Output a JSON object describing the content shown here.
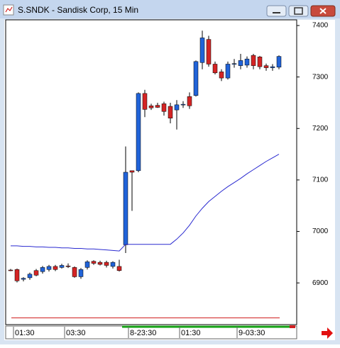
{
  "window_title": "S.SNDK - Sandisk Corp, 15 Min",
  "chart_data": {
    "type": "candlestick",
    "categories": [
      "01:30",
      null,
      null,
      null,
      null,
      null,
      null,
      null,
      "03:30",
      null,
      null,
      null,
      null,
      null,
      null,
      null,
      null,
      null,
      "8-23:30",
      null,
      null,
      null,
      null,
      null,
      null,
      null,
      "01:30",
      null,
      null,
      null,
      null,
      null,
      null,
      null,
      null,
      "9-03:30",
      null,
      null,
      null,
      null,
      null,
      null,
      null
    ],
    "open": [
      6925,
      6926,
      6907,
      6910,
      6924,
      6922,
      6926,
      6932,
      6930,
      6933,
      6930,
      6912,
      6930,
      6942,
      6940,
      6940,
      6932,
      6932,
      6974,
      7118,
      7118,
      7268,
      7244,
      7245,
      7248,
      7243,
      7236,
      7246,
      7262,
      7264,
      7328,
      7373,
      7325,
      7310,
      7298,
      7325,
      7322,
      7323,
      7342,
      7339,
      7322,
      7318,
      7319
    ],
    "high": [
      6927,
      6928,
      6911,
      6920,
      6927,
      6933,
      6935,
      6935,
      6937,
      6938,
      6932,
      6929,
      6944,
      6944,
      6943,
      6943,
      6942,
      6945,
      7165,
      7118,
      7270,
      7275,
      7248,
      7250,
      7252,
      7250,
      7255,
      7253,
      7270,
      7332,
      7390,
      7380,
      7330,
      7315,
      7330,
      7335,
      7345,
      7340,
      7345,
      7341,
      7326,
      7325,
      7342
    ],
    "low": [
      6923,
      6901,
      6903,
      6906,
      6913,
      6918,
      6922,
      6923,
      6928,
      6929,
      6910,
      6908,
      6926,
      6935,
      6934,
      6930,
      6928,
      6922,
      6958,
      7040,
      7115,
      7222,
      7236,
      7240,
      7225,
      7210,
      7198,
      7240,
      7238,
      7262,
      7315,
      7320,
      7305,
      7292,
      7295,
      7318,
      7315,
      7318,
      7315,
      7315,
      7312,
      7312,
      7315
    ],
    "close": [
      6924,
      6904,
      6909,
      6917,
      6915,
      6930,
      6932,
      6926,
      6934,
      6932,
      6912,
      6926,
      6941,
      6938,
      6936,
      6934,
      6940,
      6924,
      7115,
      7115,
      7268,
      7237,
      7240,
      7241,
      7233,
      7220,
      7246,
      7247,
      7244,
      7330,
      7376,
      7325,
      7308,
      7298,
      7325,
      7326,
      7332,
      7335,
      7322,
      7320,
      7318,
      7320,
      7340
    ],
    "up_color": "#2163d8",
    "down_color": "#d42424",
    "average": [
      6972,
      6972,
      6971,
      6971,
      6970,
      6970,
      6969,
      6969,
      6968,
      6968,
      6967,
      6967,
      6966,
      6966,
      6965,
      6964,
      6963,
      6962,
      6975,
      6975,
      6975,
      6975,
      6975,
      6975,
      6975,
      6975,
      6985,
      6997,
      7012,
      7030,
      7045,
      7058,
      7068,
      7078,
      7087,
      7095,
      7103,
      7112,
      7120,
      7128,
      7136,
      7143,
      7150
    ],
    "average_color": "#2a2ad0",
    "hline": 6832,
    "hline_color": "#d02020",
    "ylim": [
      6819,
      7411
    ],
    "yticks": [
      6900,
      7000,
      7100,
      7200,
      7300,
      7400
    ]
  }
}
